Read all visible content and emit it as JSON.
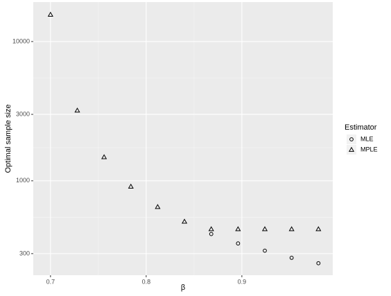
{
  "chart_data": {
    "type": "scatter",
    "x_label": "β",
    "y_label": "Optimal sample size",
    "legend_title": "Estimator",
    "x": [
      0.7,
      0.728,
      0.756,
      0.784,
      0.812,
      0.84,
      0.868,
      0.896,
      0.924,
      0.952,
      0.98
    ],
    "series": [
      {
        "name": "MLE",
        "color": "#000000",
        "shape": "circle",
        "values": [
          null,
          null,
          null,
          null,
          null,
          null,
          415,
          355,
          315,
          280,
          256
        ]
      },
      {
        "name": "MPLE",
        "color": "#000000",
        "shape": "triangle",
        "values": [
          15600,
          3200,
          1480,
          910,
          650,
          510,
          450,
          450,
          450,
          450,
          450
        ]
      }
    ],
    "xlim": [
      0.682,
      0.995
    ],
    "xticks": [
      0.7,
      0.8,
      0.9
    ],
    "ylim": [
      210,
      19200
    ],
    "yticks": [
      300,
      1000,
      3000,
      10000
    ],
    "log_y": true,
    "grid": true,
    "legend_position": "right"
  }
}
